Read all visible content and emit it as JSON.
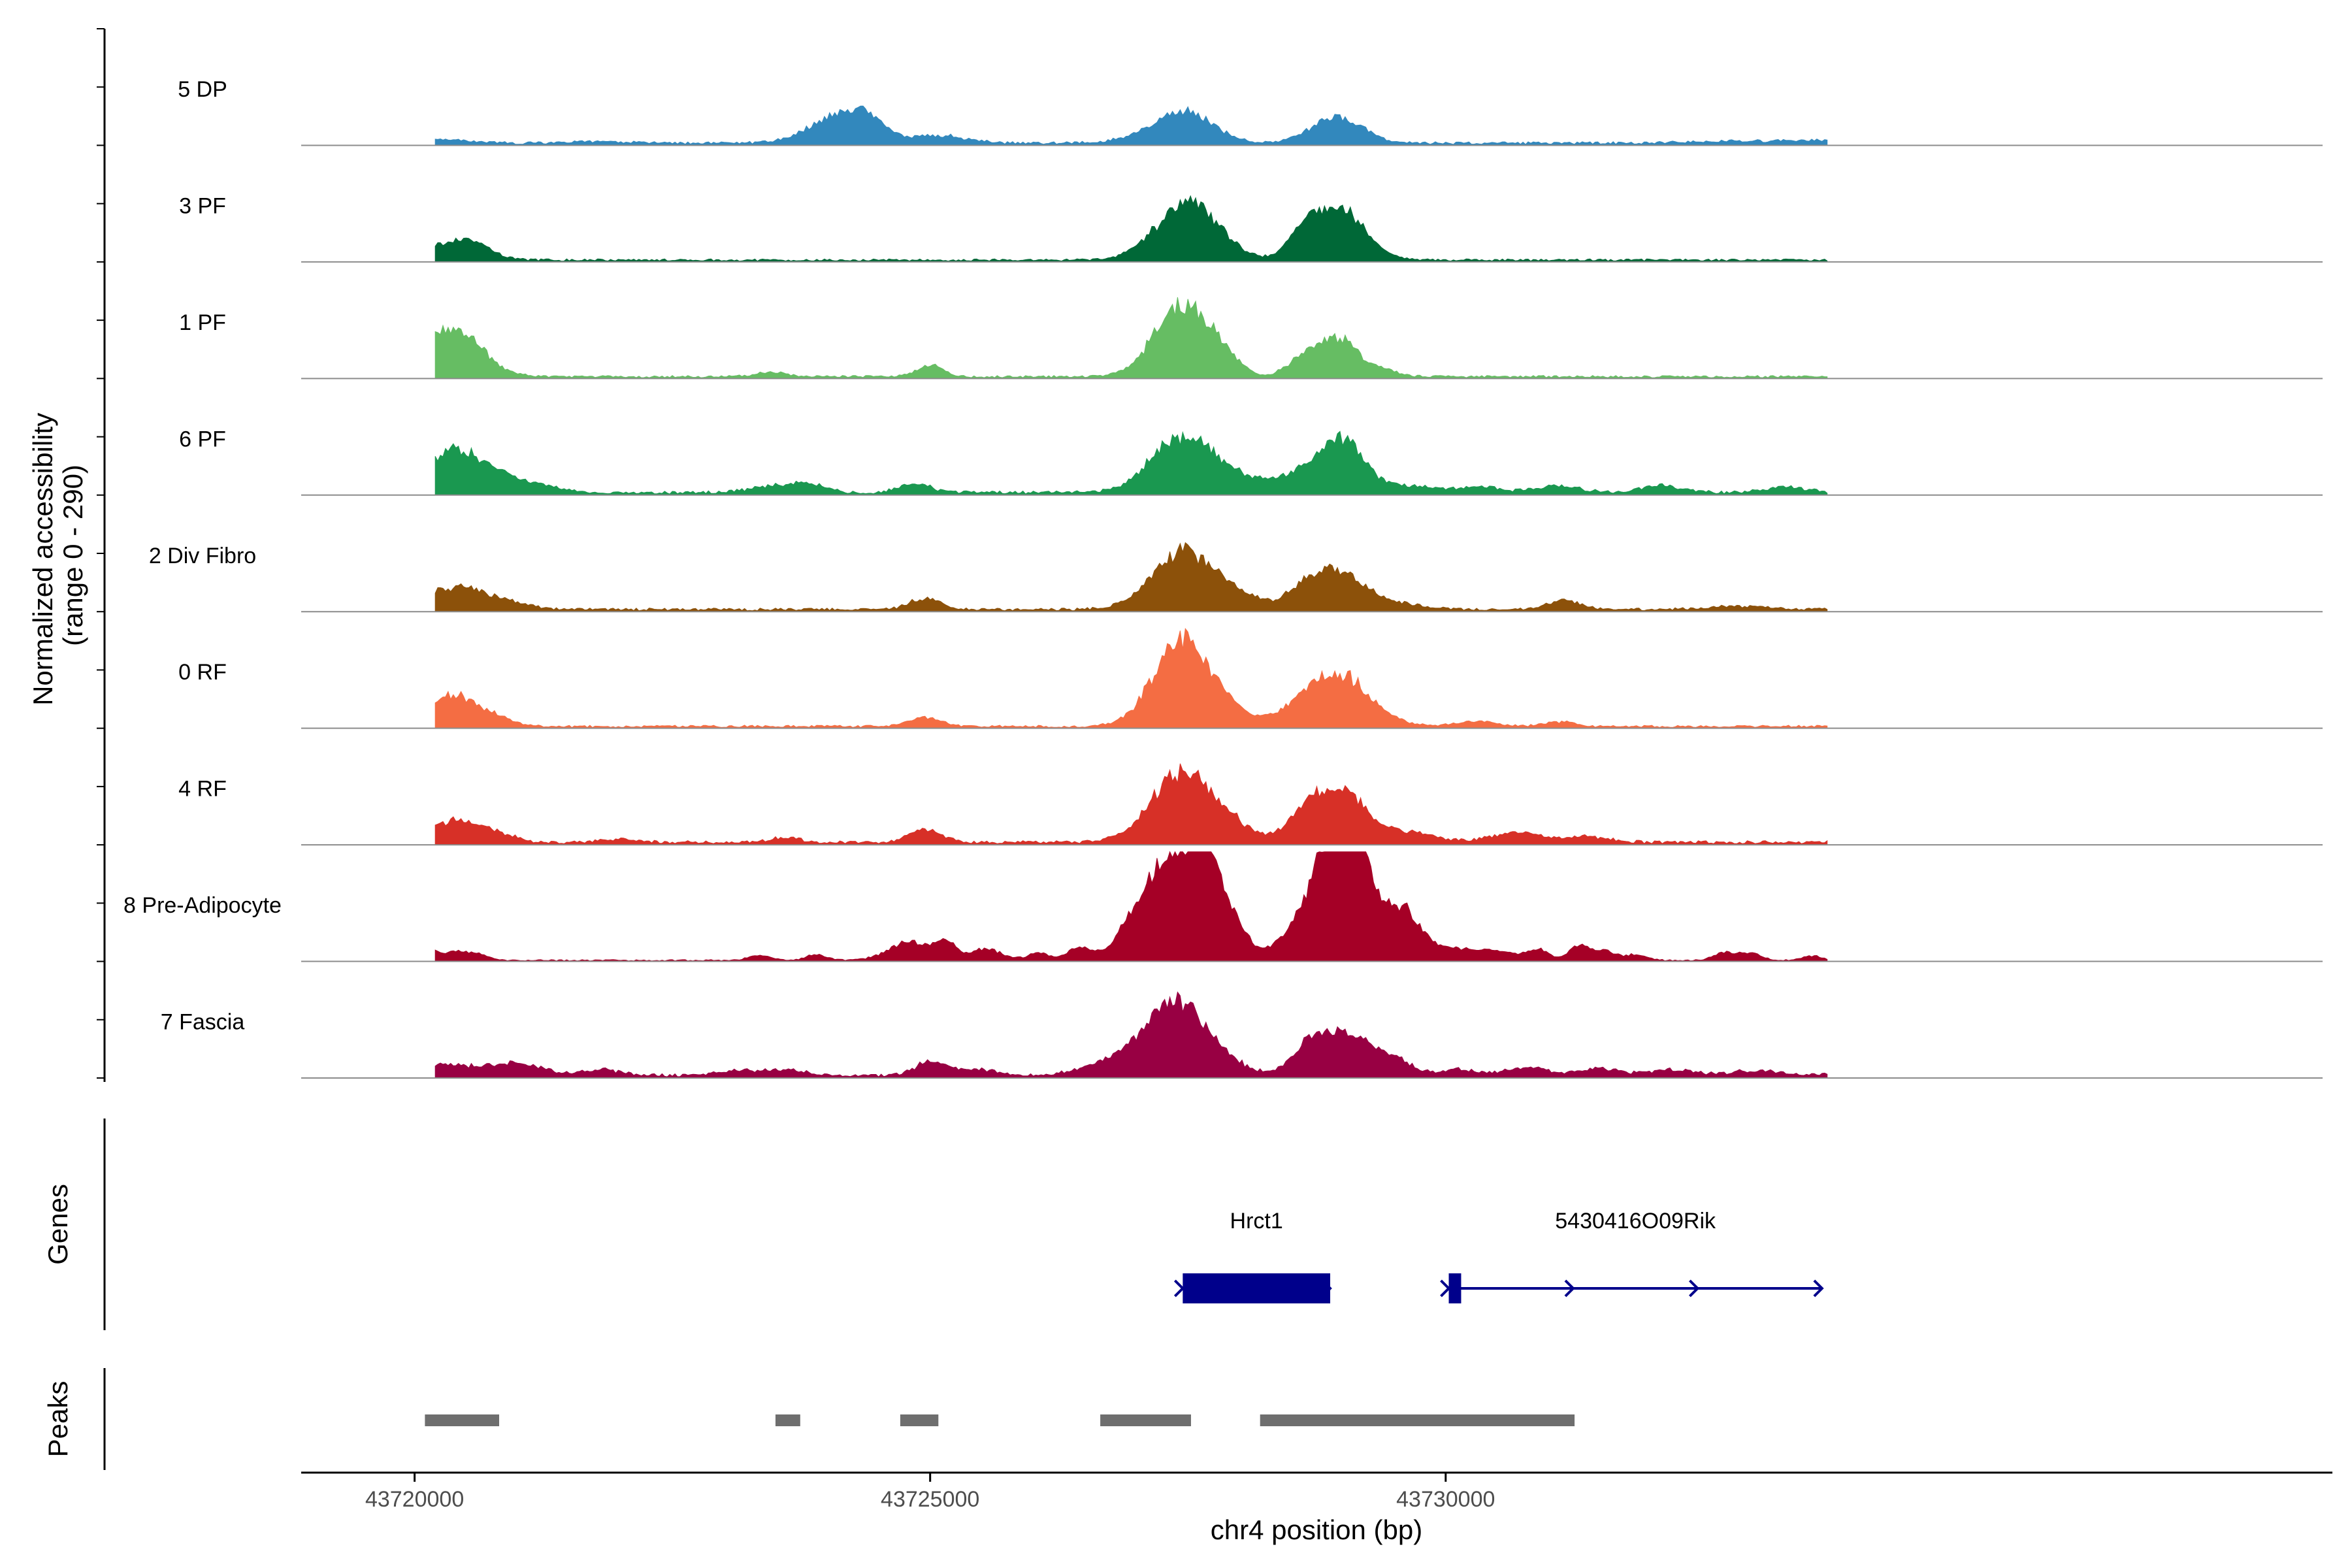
{
  "chart_data": {
    "type": "area",
    "chromosome": "chr4",
    "xlabel": "chr4 position (bp)",
    "ylabel_line1": "Normalized accessibility",
    "ylabel_line2": "(range 0 - 290)",
    "y_range": [
      0,
      290
    ],
    "xlim": [
      43718900,
      43738600
    ],
    "x_ticks": [
      {
        "value": 43720000,
        "label": "43720000"
      },
      {
        "value": 43725000,
        "label": "43725000"
      },
      {
        "value": 43730000,
        "label": "43730000"
      }
    ],
    "tracks": [
      {
        "name": "5 DP",
        "color": "#3288bd",
        "background": 6,
        "peaks": [
          [
            43720200,
            300,
            10
          ],
          [
            43721800,
            250,
            4
          ],
          [
            43724150,
            300,
            75
          ],
          [
            43724400,
            150,
            30
          ],
          [
            43725100,
            250,
            20
          ],
          [
            43727000,
            300,
            6
          ],
          [
            43727450,
            280,
            85
          ],
          [
            43728950,
            250,
            70
          ],
          [
            43732700,
            400,
            5
          ],
          [
            43734000,
            600,
            8
          ]
        ]
      },
      {
        "name": "3 PF",
        "color": "#006837",
        "background": 5,
        "peaks": [
          [
            43720300,
            280,
            45
          ],
          [
            43720600,
            150,
            25
          ],
          [
            43727500,
            300,
            150
          ],
          [
            43728600,
            130,
            50
          ],
          [
            43728950,
            250,
            140
          ]
        ]
      },
      {
        "name": "1 PF",
        "color": "#66bd63",
        "background": 5,
        "peaks": [
          [
            43720420,
            260,
            110
          ],
          [
            43720150,
            150,
            35
          ],
          [
            43723450,
            150,
            12
          ],
          [
            43725000,
            130,
            30
          ],
          [
            43727450,
            270,
            190
          ],
          [
            43727850,
            150,
            30
          ],
          [
            43728600,
            150,
            40
          ],
          [
            43728950,
            200,
            100
          ],
          [
            43729400,
            150,
            15
          ]
        ]
      },
      {
        "name": "6 PF",
        "color": "#1a9850",
        "background": 7,
        "peaks": [
          [
            43720400,
            280,
            110
          ],
          [
            43720900,
            200,
            30
          ],
          [
            43721300,
            150,
            15
          ],
          [
            43723550,
            250,
            18
          ],
          [
            43723850,
            150,
            15
          ],
          [
            43724850,
            150,
            25
          ],
          [
            43727450,
            300,
            150
          ],
          [
            43728050,
            250,
            30
          ],
          [
            43728550,
            200,
            35
          ],
          [
            43728980,
            220,
            140
          ],
          [
            43729650,
            250,
            18
          ],
          [
            43730350,
            200,
            15
          ],
          [
            43731100,
            200,
            18
          ],
          [
            43732100,
            200,
            18
          ],
          [
            43733300,
            200,
            15
          ]
        ]
      },
      {
        "name": "2 Div Fibro",
        "color": "#8c510a",
        "background": 6,
        "peaks": [
          [
            43720400,
            280,
            60
          ],
          [
            43720950,
            200,
            15
          ],
          [
            43724950,
            150,
            30
          ],
          [
            43727450,
            300,
            150
          ],
          [
            43728000,
            250,
            30
          ],
          [
            43728600,
            150,
            35
          ],
          [
            43728950,
            250,
            100
          ],
          [
            43729550,
            250,
            15
          ],
          [
            43731150,
            150,
            25
          ],
          [
            43732850,
            300,
            8
          ]
        ]
      },
      {
        "name": "0 RF",
        "color": "#f46d43",
        "background": 5,
        "peaks": [
          [
            43720350,
            260,
            85
          ],
          [
            43720800,
            150,
            15
          ],
          [
            43724950,
            150,
            25
          ],
          [
            43727450,
            280,
            225
          ],
          [
            43727900,
            150,
            25
          ],
          [
            43728300,
            150,
            20
          ],
          [
            43728600,
            150,
            30
          ],
          [
            43728950,
            260,
            140
          ],
          [
            43729400,
            200,
            15
          ],
          [
            43730300,
            200,
            12
          ],
          [
            43731100,
            150,
            12
          ]
        ]
      },
      {
        "name": "4 RF",
        "color": "#d73027",
        "background": 7,
        "peaks": [
          [
            43720420,
            250,
            60
          ],
          [
            43720850,
            150,
            12
          ],
          [
            43722000,
            150,
            10
          ],
          [
            43723600,
            150,
            12
          ],
          [
            43724950,
            150,
            35
          ],
          [
            43727450,
            300,
            185
          ],
          [
            43728000,
            200,
            25
          ],
          [
            43728600,
            150,
            40
          ],
          [
            43728950,
            260,
            140
          ],
          [
            43729650,
            250,
            25
          ],
          [
            43730700,
            250,
            25
          ],
          [
            43731400,
            200,
            15
          ]
        ]
      },
      {
        "name": "8 Pre-Adipocyte",
        "color": "#a50026",
        "background": 3,
        "peaks": [
          [
            43720150,
            100,
            25
          ],
          [
            43720400,
            100,
            20
          ],
          [
            43720600,
            100,
            18
          ],
          [
            43723350,
            100,
            15
          ],
          [
            43723900,
            100,
            15
          ],
          [
            43724800,
            200,
            50
          ],
          [
            43725150,
            100,
            45
          ],
          [
            43725550,
            150,
            30
          ],
          [
            43726050,
            100,
            20
          ],
          [
            43726400,
            100,
            25
          ],
          [
            43726550,
            100,
            18
          ],
          [
            43726900,
            120,
            45
          ],
          [
            43727150,
            150,
            60
          ],
          [
            43727450,
            300,
            270
          ],
          [
            43727700,
            150,
            130
          ],
          [
            43728000,
            100,
            40
          ],
          [
            43728400,
            150,
            30
          ],
          [
            43728600,
            150,
            40
          ],
          [
            43728900,
            200,
            280
          ],
          [
            43729050,
            150,
            220
          ],
          [
            43729300,
            150,
            100
          ],
          [
            43729600,
            150,
            120
          ],
          [
            43729900,
            150,
            30
          ],
          [
            43730200,
            150,
            25
          ],
          [
            43730450,
            100,
            20
          ],
          [
            43730650,
            100,
            15
          ],
          [
            43730900,
            100,
            30
          ],
          [
            43731300,
            100,
            40
          ],
          [
            43731550,
            100,
            25
          ],
          [
            43731850,
            100,
            15
          ],
          [
            43732700,
            100,
            20
          ],
          [
            43732950,
            100,
            20
          ],
          [
            43733550,
            100,
            12
          ]
        ]
      },
      {
        "name": "7 Fascia",
        "color": "#980043",
        "background": 7,
        "peaks": [
          [
            43720200,
            200,
            20
          ],
          [
            43720700,
            300,
            25
          ],
          [
            43721100,
            200,
            18
          ],
          [
            43721800,
            200,
            15
          ],
          [
            43723100,
            200,
            12
          ],
          [
            43723600,
            200,
            15
          ],
          [
            43725000,
            150,
            35
          ],
          [
            43725450,
            200,
            15
          ],
          [
            43726600,
            250,
            18
          ],
          [
            43727000,
            250,
            45
          ],
          [
            43727400,
            270,
            180
          ],
          [
            43727800,
            250,
            30
          ],
          [
            43728650,
            150,
            40
          ],
          [
            43728950,
            260,
            105
          ],
          [
            43729300,
            200,
            30
          ],
          [
            43729550,
            150,
            25
          ],
          [
            43730100,
            200,
            15
          ],
          [
            43730800,
            200,
            20
          ],
          [
            43731500,
            200,
            18
          ],
          [
            43732200,
            200,
            15
          ],
          [
            43733000,
            250,
            12
          ],
          [
            43733900,
            200,
            10
          ]
        ]
      }
    ],
    "genes": [
      {
        "name": "Hrct1",
        "start": 43727450,
        "end": 43728880,
        "strand": "+",
        "color": "#00008b",
        "exons": [
          [
            43727450,
            43728880
          ]
        ]
      },
      {
        "name": "5430416O09Rik",
        "start": 43730030,
        "end": 43733650,
        "strand": "+",
        "color": "#00008b",
        "exons": [
          [
            43730030,
            43730150
          ]
        ]
      }
    ],
    "peaks_track": {
      "color": "#6e6e6e",
      "regions": [
        [
          43720100,
          43720820
        ],
        [
          43723500,
          43723740
        ],
        [
          43724710,
          43725080
        ],
        [
          43726650,
          43727530
        ],
        [
          43728200,
          43731250
        ]
      ]
    },
    "panel_labels": {
      "genes": "Genes",
      "peaks": "Peaks"
    },
    "legend": "none",
    "grid": false
  }
}
